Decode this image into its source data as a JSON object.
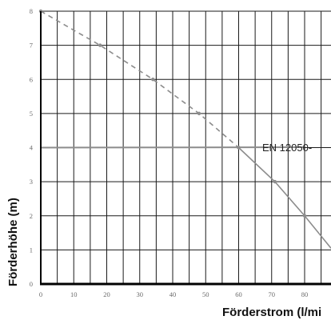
{
  "chart_data": {
    "type": "line",
    "xlabel": "Förderstrom (l/mi",
    "ylabel": "Förderhöhe (m)",
    "xlim": [
      0,
      88
    ],
    "ylim": [
      0,
      8
    ],
    "grid": true,
    "x_ticks": [
      "0",
      "10",
      "20",
      "30",
      "40",
      "50",
      "60",
      "70",
      "80"
    ],
    "y_ticks": [
      "0",
      "1",
      "2",
      "3",
      "4",
      "5",
      "6",
      "7",
      "8"
    ],
    "series": [
      {
        "style": "dashed",
        "color": "#8c8c8c",
        "points": [
          [
            0,
            8
          ],
          [
            18,
            7
          ],
          [
            34,
            6
          ],
          [
            48,
            5
          ],
          [
            60,
            4
          ]
        ]
      },
      {
        "style": "solid",
        "color": "#8c8c8c",
        "points": [
          [
            60,
            4
          ],
          [
            71,
            3
          ],
          [
            80,
            2
          ],
          [
            88,
            1.05
          ]
        ]
      }
    ],
    "reference_line": {
      "label": "EN 12050-",
      "y": 4,
      "x_from": 0,
      "x_to": 66,
      "color": "#8c8c8c"
    }
  }
}
